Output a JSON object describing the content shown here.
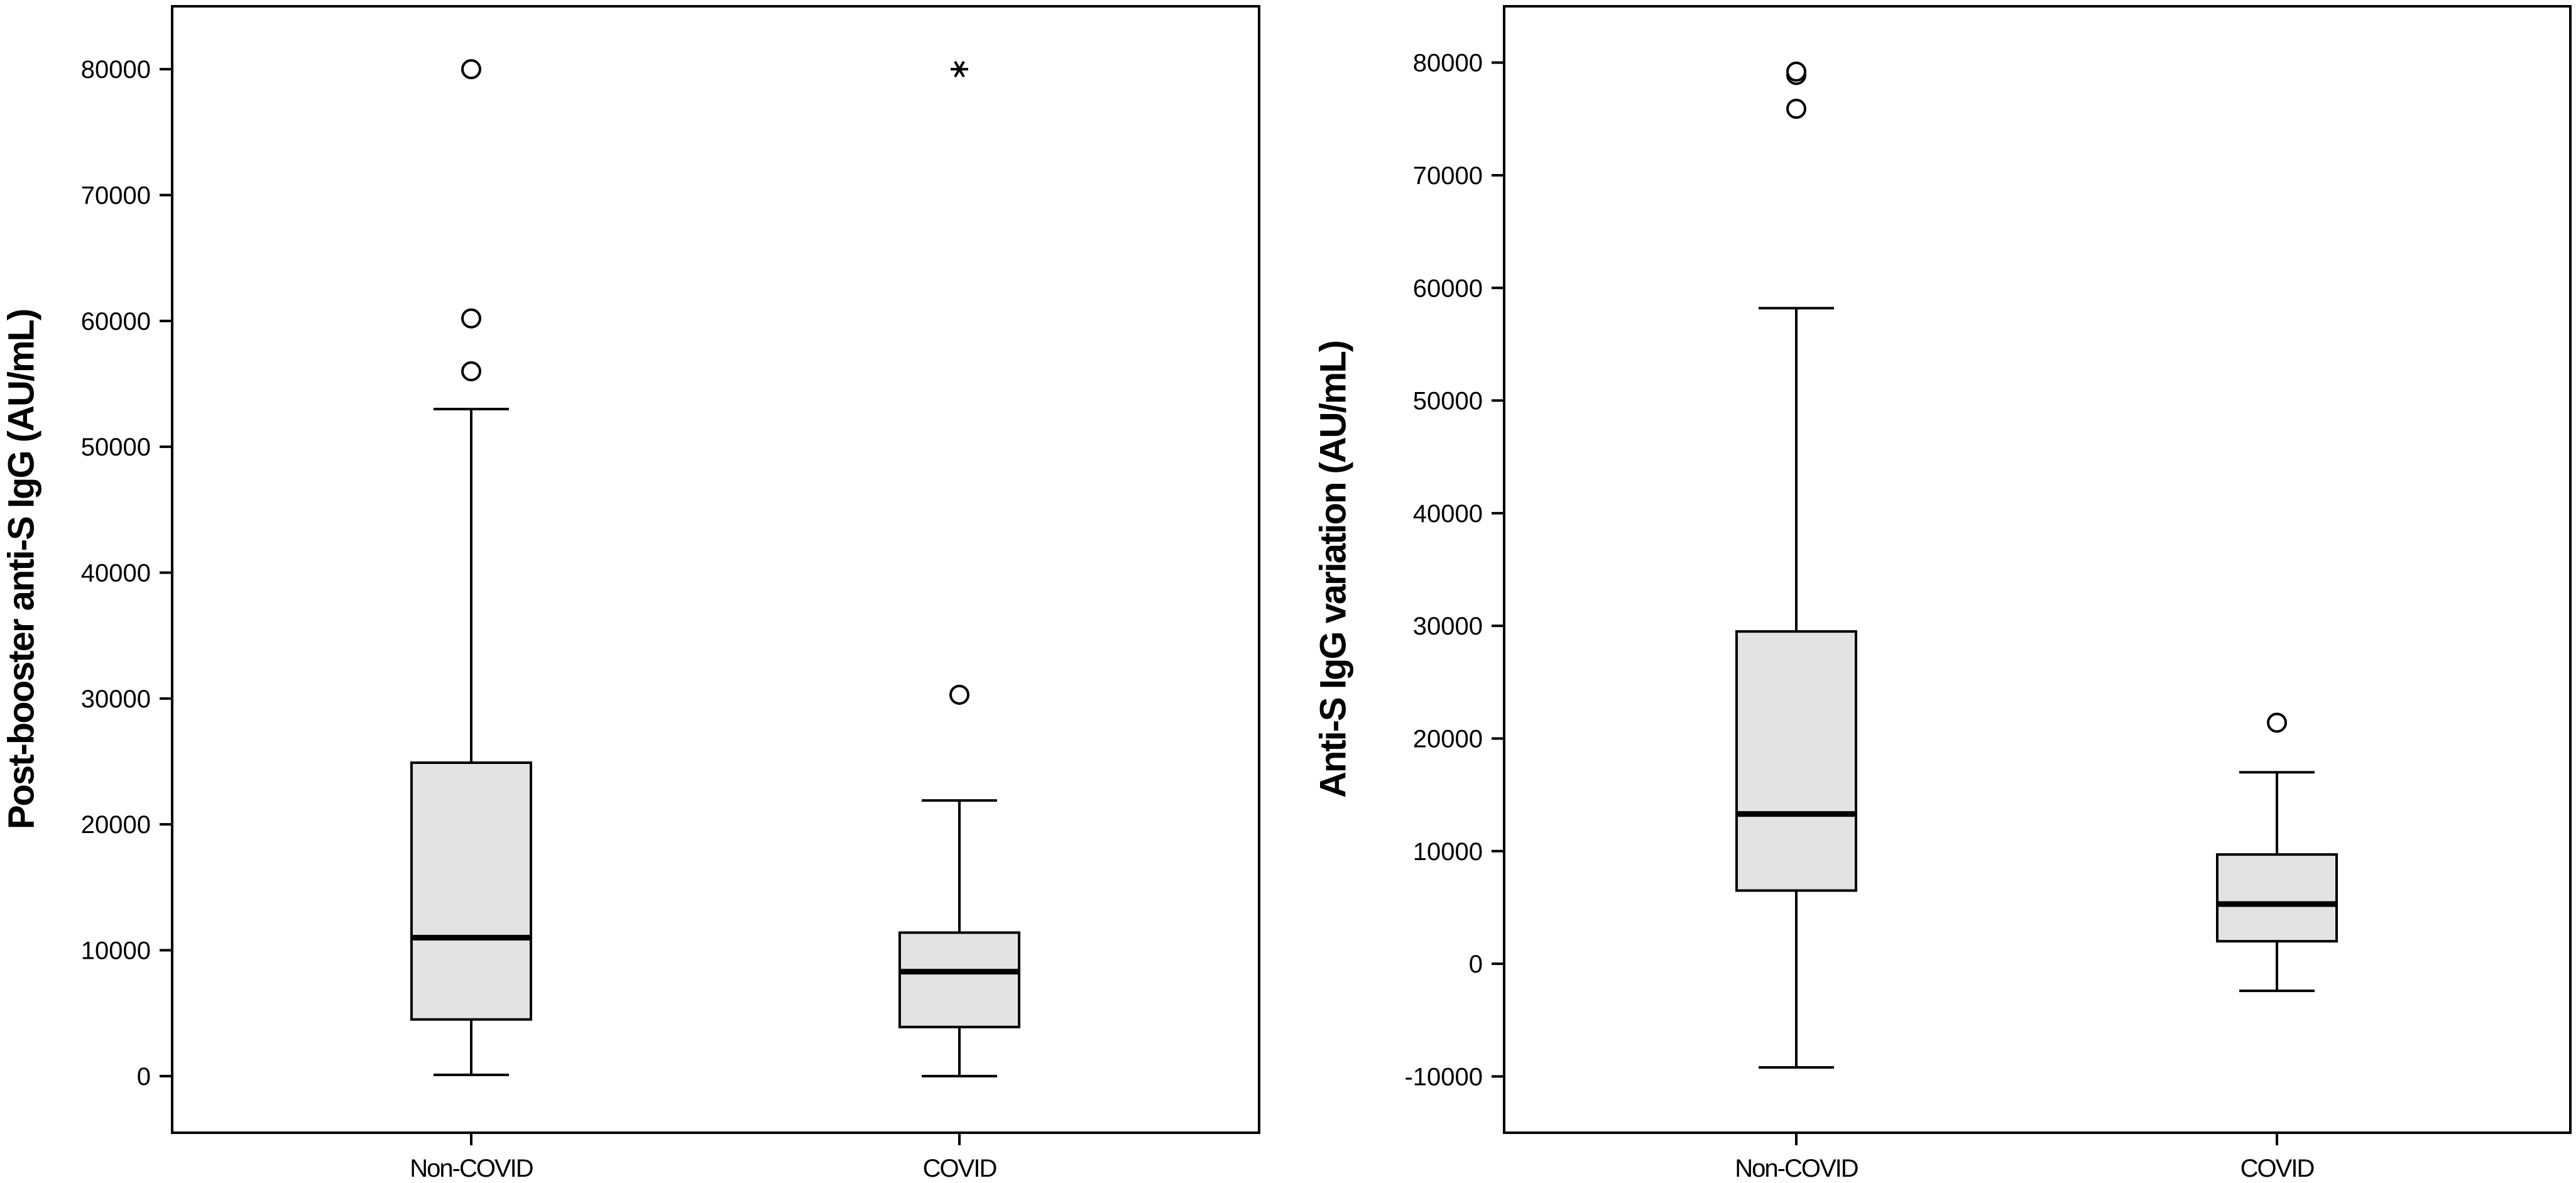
{
  "chart_data": [
    {
      "type": "boxplot",
      "ylabel": "Post-booster anti-S IgG (AU/mL)",
      "ylim": [
        -4500,
        85000
      ],
      "yticks": [
        0,
        10000,
        20000,
        30000,
        40000,
        50000,
        60000,
        70000,
        80000
      ],
      "ytick_labels": [
        "0",
        "10000",
        "20000",
        "30000",
        "40000",
        "50000",
        "60000",
        "70000",
        "80000"
      ],
      "categories": [
        "Non-COVID",
        "COVID"
      ],
      "colors": {
        "box_fill": "#e3e3e3",
        "stroke": "#000000"
      },
      "boxes": [
        {
          "min": 100,
          "q1": 4500,
          "median": 11000,
          "q3": 24900,
          "max": 53000,
          "outliers": [
            56000,
            60200,
            80000
          ],
          "extremes": []
        },
        {
          "min": 0,
          "q1": 3900,
          "median": 8300,
          "q3": 11400,
          "max": 21900,
          "outliers": [
            30300
          ],
          "extremes": [
            80000
          ]
        }
      ]
    },
    {
      "type": "boxplot",
      "ylabel": "Anti-S IgG variation (AU/mL)",
      "ylim": [
        -15000,
        85000
      ],
      "yticks": [
        -10000,
        0,
        10000,
        20000,
        30000,
        40000,
        50000,
        60000,
        70000,
        80000
      ],
      "ytick_labels": [
        "-10000",
        "0",
        "10000",
        "20000",
        "30000",
        "40000",
        "50000",
        "60000",
        "70000",
        "80000"
      ],
      "categories": [
        "Non-COVID",
        "COVID"
      ],
      "colors": {
        "box_fill": "#e3e3e3",
        "stroke": "#000000"
      },
      "boxes": [
        {
          "min": -9200,
          "q1": 6500,
          "median": 13300,
          "q3": 29500,
          "max": 58200,
          "outliers": [
            75900,
            78900,
            79200
          ],
          "extremes": []
        },
        {
          "min": -2400,
          "q1": 2000,
          "median": 5300,
          "q3": 9700,
          "max": 17000,
          "outliers": [
            21400
          ],
          "extremes": []
        }
      ]
    }
  ]
}
